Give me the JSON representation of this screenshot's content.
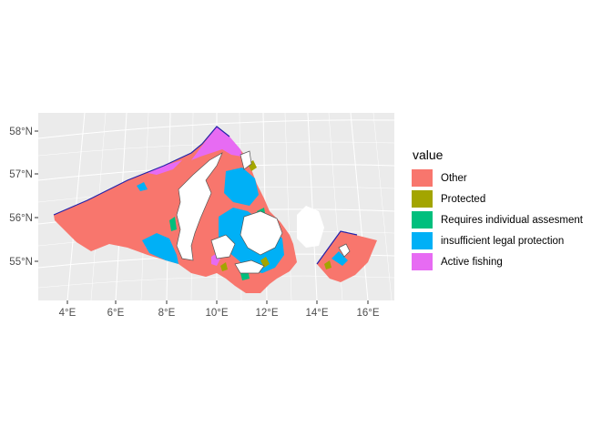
{
  "map": {
    "y_ticks": [
      "58°N",
      "57°N",
      "56°N",
      "55°N"
    ],
    "x_ticks": [
      "4°E",
      "6°E",
      "8°E",
      "10°E",
      "12°E",
      "14°E",
      "16°E"
    ],
    "panel_background": "#ebebeb",
    "grid_color": "#ffffff"
  },
  "legend": {
    "title": "value",
    "items": [
      {
        "label": "Other",
        "color": "#f8766d"
      },
      {
        "label": "Protected",
        "color": "#a3a500"
      },
      {
        "label": "Requires individual assesment",
        "color": "#00bf7d"
      },
      {
        "label": "insufficient legal protection",
        "color": "#00b0f6"
      },
      {
        "label": "Active fishing",
        "color": "#e76bf3"
      }
    ]
  }
}
